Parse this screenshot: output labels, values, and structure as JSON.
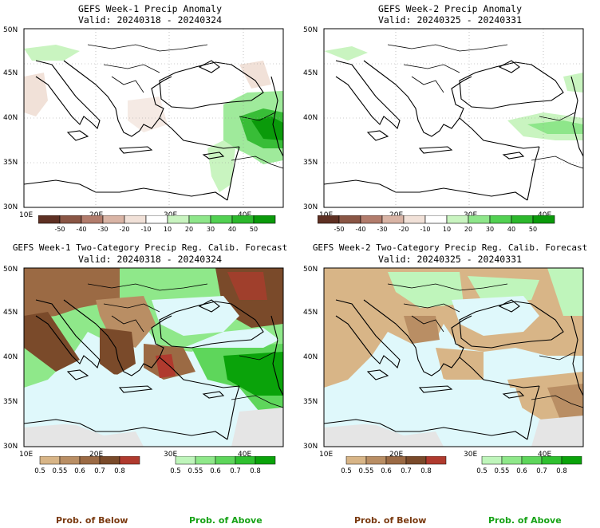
{
  "panels": [
    {
      "id": "tl",
      "title1": "GEFS Week-1 Precip Anomaly",
      "title2": "Valid: 20240318 - 20240324",
      "kind": "anom"
    },
    {
      "id": "tr",
      "title1": "GEFS Week-2 Precip Anomaly",
      "title2": "Valid: 20240325 - 20240331",
      "kind": "anom"
    },
    {
      "id": "bl",
      "title1": "GEFS Week-1 Two-Category Precip Reg. Calib. Forecast",
      "title2": "Valid: 20240318 - 20240324",
      "kind": "prob"
    },
    {
      "id": "br",
      "title1": "GEFS Week-2 Two-Category Precip Reg. Calib. Forecast",
      "title2": "Valid: 20240325 - 20240331",
      "kind": "prob"
    }
  ],
  "axes": {
    "lat_labels": [
      "30N",
      "35N",
      "40N",
      "45N",
      "50N"
    ],
    "lon_labels": [
      "10E",
      "20E",
      "30E",
      "40E"
    ]
  },
  "anom_colorbar": {
    "ticks": [
      "-50",
      "-40",
      "-30",
      "-20",
      "-10",
      "10",
      "20",
      "30",
      "40",
      "50"
    ],
    "colors": [
      "#5e3023",
      "#8a5645",
      "#b27c6c",
      "#d9b4a5",
      "#f1e1d8",
      "#ffffff",
      "#c9f4c0",
      "#8ee68a",
      "#52d152",
      "#2cb82c",
      "#0a9a0a"
    ]
  },
  "prob_below": {
    "ticks": [
      "0.5",
      "0.55",
      "0.6",
      "0.7",
      "0.8"
    ],
    "colors": [
      "#d8b587",
      "#b98e64",
      "#9b6a44",
      "#7a4a2a",
      "#b03a2e"
    ],
    "caption": "Prob. of Below",
    "caption_color": "#7a3a10"
  },
  "prob_above": {
    "ticks": [
      "0.5",
      "0.55",
      "0.6",
      "0.7",
      "0.8"
    ],
    "colors": [
      "#bff5bb",
      "#8fe88a",
      "#5ed65b",
      "#2fc02f",
      "#0aa30a"
    ],
    "caption": "Prob. of Above",
    "caption_color": "#17a317"
  }
}
